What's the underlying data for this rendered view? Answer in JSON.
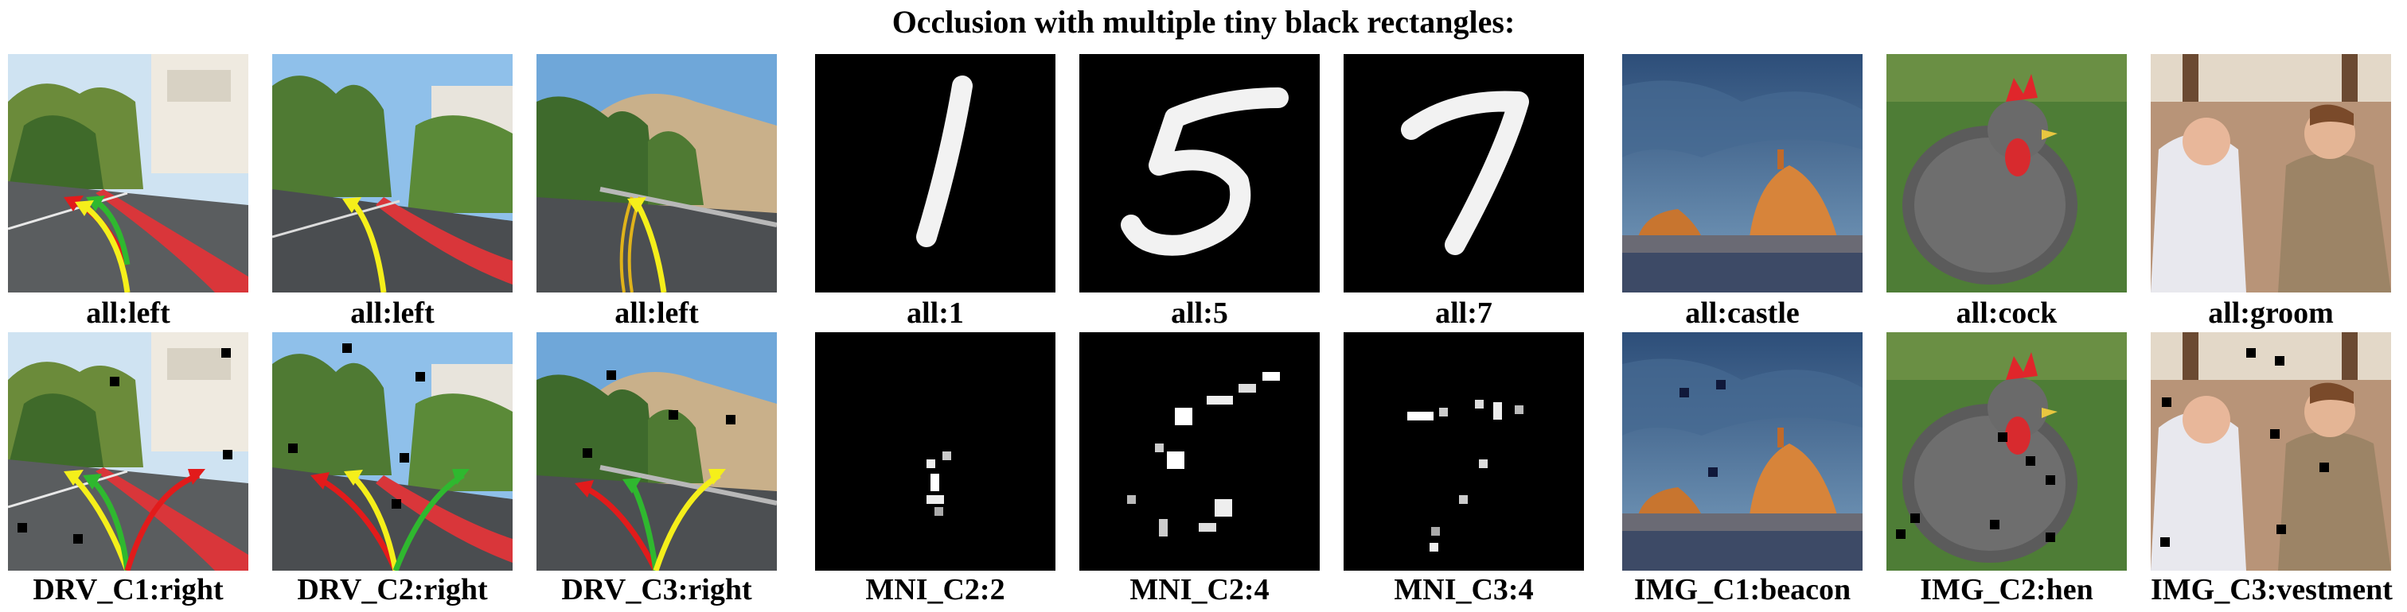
{
  "title": "Occlusion with multiple tiny black rectangles:",
  "captions": {
    "top": [
      "all:left",
      "all:left",
      "all:left",
      "all:1",
      "all:5",
      "all:7",
      "all:castle",
      "all:cock",
      "all:groom"
    ],
    "bottom": [
      "DRV_C1:right",
      "DRV_C2:right",
      "DRV_C3:right",
      "MNI_C2:2",
      "MNI_C2:4",
      "MNI_C3:4",
      "IMG_C1:beacon",
      "IMG_C2:hen",
      "IMG_C3:vestment"
    ]
  },
  "colors": {
    "arrow_red": "#e21b1b",
    "arrow_yellow": "#f5ef1a",
    "arrow_green": "#2fb82f",
    "occluder": "#000000"
  }
}
